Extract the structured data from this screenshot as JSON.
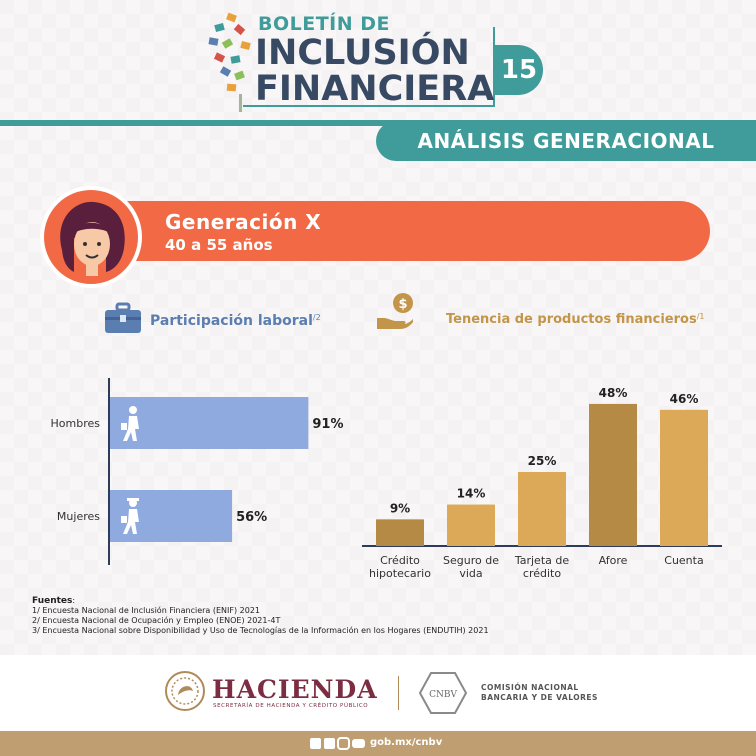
{
  "header": {
    "boletin": "BOLETÍN DE",
    "inclusion": "INCLUSIÓN",
    "financiera": "FINANCIERA",
    "issue_number": "15"
  },
  "section_title": "ANÁLISIS GENERACIONAL",
  "generation": {
    "title": "Generación X",
    "range": "40 a 55 años"
  },
  "left_panel": {
    "label": "Participación laboral",
    "superscript": "/2"
  },
  "right_panel": {
    "label": "Tenencia de productos financieros",
    "superscript": "/1"
  },
  "chart_data": [
    {
      "type": "bar",
      "orientation": "horizontal",
      "title": "Participación laboral",
      "categories": [
        "Hombres",
        "Mujeres"
      ],
      "values": [
        91,
        56
      ],
      "value_labels": [
        "91%",
        "56%"
      ],
      "xlim": [
        0,
        100
      ],
      "color": "#8eaadf"
    },
    {
      "type": "bar",
      "orientation": "vertical",
      "title": "Tenencia de productos financieros",
      "categories": [
        [
          "Crédito",
          "hipotecario"
        ],
        [
          "Seguro de",
          "vida"
        ],
        [
          "Tarjeta de",
          "crédito"
        ],
        [
          "Afore"
        ],
        [
          "Cuenta"
        ]
      ],
      "values": [
        9,
        14,
        25,
        48,
        46
      ],
      "value_labels": [
        "9%",
        "14%",
        "25%",
        "48%",
        "46%"
      ],
      "ylim": [
        0,
        50
      ],
      "colors": [
        "#b58a45",
        "#dba958",
        "#dba958",
        "#b58a45",
        "#dba958"
      ]
    }
  ],
  "sources": {
    "title": "Fuentes",
    "items": [
      {
        "mark": "1/",
        "text": "Encuesta Nacional de Inclusión Financiera (ENIF) 2021"
      },
      {
        "mark": "2/",
        "text": "Encuesta Nacional de Ocupación y Empleo (ENOE) 2021-4T"
      },
      {
        "mark": "3/",
        "text": "Encuesta Nacional sobre Disponibilidad y Uso de Tecnologías de la Información en los Hogares (ENDUTIH) 2021"
      }
    ]
  },
  "footer": {
    "hacienda": "HACIENDA",
    "hacienda_sub": "SECRETARÍA DE HACIENDA Y CRÉDITO PÚBLICO",
    "cnbv_badge": "CNBV",
    "cnbv_line1": "COMISIÓN NACIONAL",
    "cnbv_line2": "BANCARIA Y DE VALORES",
    "url": "gob.mx/cnbv"
  },
  "icons": [
    "briefcase-icon",
    "money-hand-icon",
    "man-walking-icon",
    "woman-walking-icon",
    "facebook-icon",
    "twitter-icon",
    "instagram-icon",
    "youtube-icon",
    "mexico-seal-icon",
    "cnbv-logo-icon"
  ]
}
